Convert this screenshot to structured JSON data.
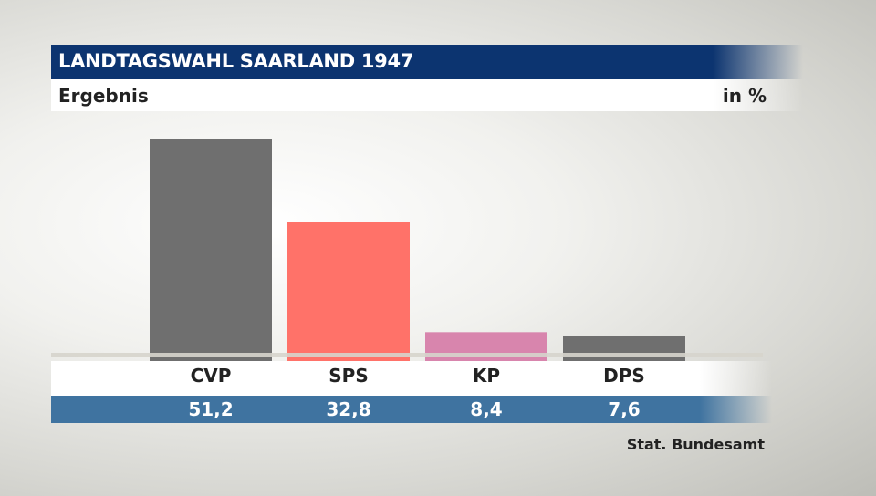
{
  "header": {
    "title": "LANDTAGSWAHL SAARLAND 1947",
    "subtitle": "Ergebnis",
    "unit": "in %"
  },
  "source": "Stat. Bundesamt",
  "chart_data": {
    "type": "bar",
    "title": "LANDTAGSWAHL SAARLAND 1947",
    "subtitle": "Ergebnis",
    "ylabel": "in %",
    "categories": [
      "CVP",
      "SPS",
      "KP",
      "DPS"
    ],
    "values": [
      51.2,
      32.8,
      8.4,
      7.6
    ],
    "value_labels": [
      "51,2",
      "32,8",
      "8,4",
      "7,6"
    ],
    "colors": [
      "#6f6f6f",
      "#ff7269",
      "#d885ad",
      "#6f6f6f"
    ],
    "ylim": [
      0,
      51.2
    ],
    "grid": false,
    "legend": "none"
  }
}
